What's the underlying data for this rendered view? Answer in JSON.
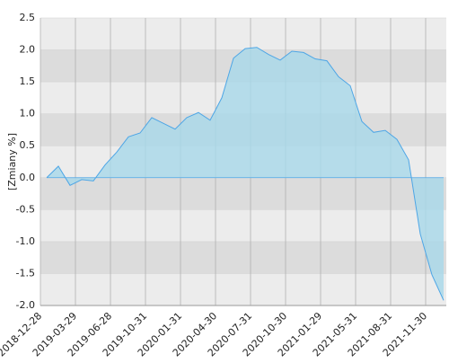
{
  "chart_data": {
    "type": "area",
    "y_label": "[Zmiany %]",
    "categories": [
      "2018-12-28",
      null,
      null,
      "2019-03-29",
      null,
      null,
      "2019-06-28",
      null,
      null,
      "2019-10-31",
      null,
      null,
      "2020-01-31",
      null,
      null,
      "2020-04-30",
      null,
      null,
      "2020-07-31",
      null,
      null,
      "2020-10-30",
      null,
      null,
      "2021-01-29",
      null,
      null,
      "2021-05-31",
      null,
      null,
      "2021-08-31",
      null,
      null,
      "2021-11-30",
      null
    ],
    "series": [
      {
        "name": "Zmiany",
        "color": "#4ea6e6",
        "fill": "#a8d8ea",
        "values": [
          0.0,
          0.18,
          -0.12,
          -0.03,
          -0.05,
          0.2,
          0.4,
          0.64,
          0.7,
          0.94,
          0.85,
          0.76,
          0.94,
          1.02,
          0.9,
          1.25,
          1.87,
          2.02,
          2.04,
          1.93,
          1.84,
          1.98,
          1.96,
          1.86,
          1.83,
          1.58,
          1.44,
          0.88,
          0.71,
          0.74,
          0.6,
          0.28,
          -0.88,
          -1.52,
          -1.92
        ]
      }
    ],
    "ylim": [
      -2.0,
      2.5
    ],
    "yticks": [
      2.5,
      {
        "value": 2.0,
        "label": "2.0"
      },
      1.5,
      {
        "value": 1.0,
        "label": "1.0"
      },
      0.5,
      {
        "value": 0.0,
        "label": "0.0"
      },
      -0.5,
      {
        "value": -1.0,
        "label": "-1.0"
      },
      -1.5,
      {
        "value": -2.0,
        "label": "-2.0"
      }
    ],
    "grid": true
  }
}
